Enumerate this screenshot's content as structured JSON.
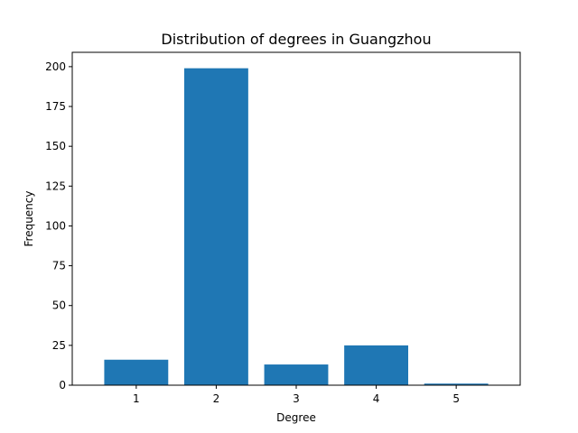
{
  "chart_data": {
    "type": "bar",
    "title": "Distribution of degrees in Guangzhou",
    "xlabel": "Degree",
    "ylabel": "Frequency",
    "categories": [
      1,
      2,
      3,
      4,
      5
    ],
    "values": [
      16,
      199,
      13,
      25,
      1
    ],
    "ylim": [
      0,
      209
    ],
    "yticks": [
      0,
      25,
      50,
      75,
      100,
      125,
      150,
      175,
      200
    ],
    "bar_color": "#1f77b4",
    "grid": false
  }
}
